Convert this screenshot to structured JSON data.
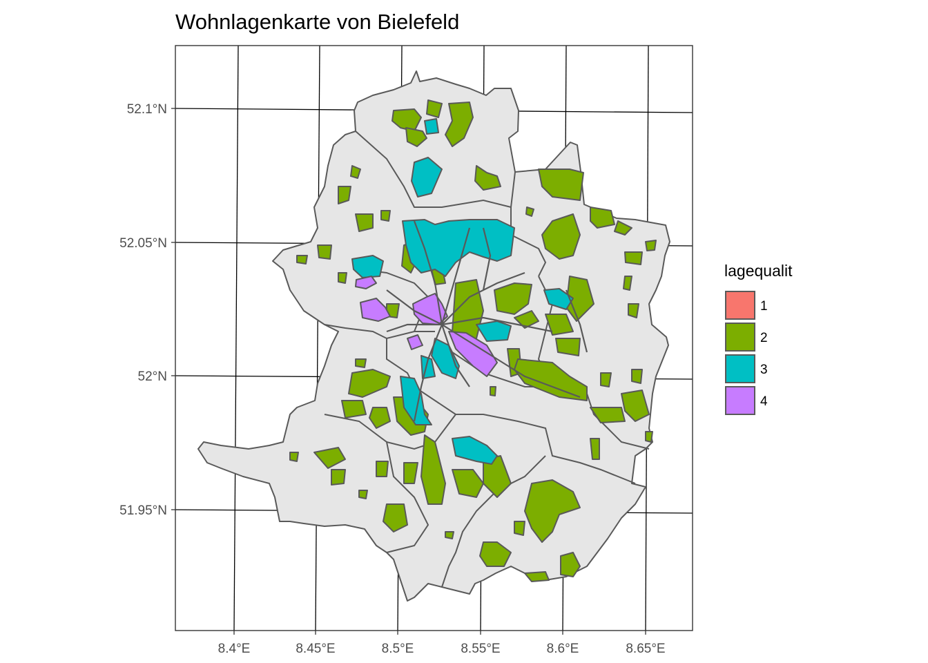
{
  "title": "Wohnlagenkarte von Bielefeld",
  "axes": {
    "x_ticks": [
      "8.4°E",
      "8.45°E",
      "8.5°E",
      "8.55°E",
      "8.6°E",
      "8.65°E"
    ],
    "y_ticks": [
      "52.1°N",
      "52.05°N",
      "52°N",
      "51.95°N"
    ]
  },
  "legend": {
    "title": "lagequalit",
    "items": [
      {
        "label": "1",
        "color": "#F8766D"
      },
      {
        "label": "2",
        "color": "#7CAE00"
      },
      {
        "label": "3",
        "color": "#00BFC4"
      },
      {
        "label": "4",
        "color": "#C77CFF"
      }
    ]
  },
  "colors": {
    "district_fill": "#E6E6E6",
    "district_stroke": "#595959",
    "graticule": "#000000"
  }
}
